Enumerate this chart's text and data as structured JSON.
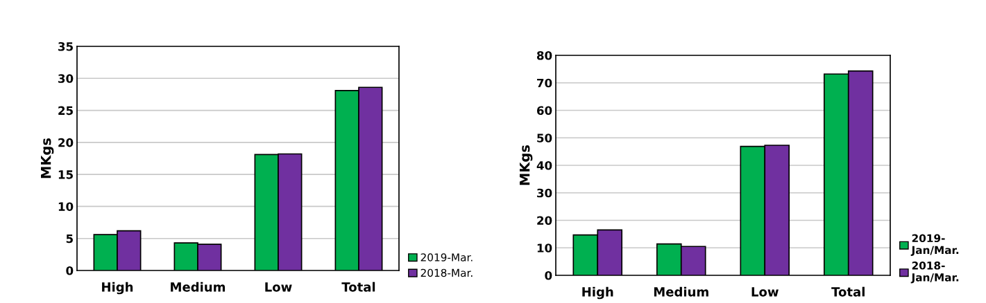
{
  "chart_data": [
    {
      "type": "bar",
      "ylabel": "MKgs",
      "categories": [
        "High",
        "Medium",
        "Low",
        "Total"
      ],
      "ylim": [
        0,
        35
      ],
      "yticks": [
        0,
        5,
        10,
        15,
        20,
        25,
        30,
        35
      ],
      "grid": "y",
      "legend": "right",
      "series": [
        {
          "name": "2019-Mar.",
          "color": "#00b050",
          "values": [
            5.6,
            4.3,
            18.1,
            28.1
          ]
        },
        {
          "name": "2018-Mar.",
          "color": "#7030a0",
          "values": [
            6.2,
            4.1,
            18.2,
            28.6
          ]
        }
      ]
    },
    {
      "type": "bar",
      "ylabel": "MKgs",
      "categories": [
        "High",
        "Medium",
        "Low",
        "Total"
      ],
      "ylim": [
        0,
        80
      ],
      "yticks": [
        0,
        10,
        20,
        30,
        40,
        50,
        60,
        70,
        80
      ],
      "grid": "y",
      "legend": "right",
      "series": [
        {
          "name": "2019-\nJan/Mar.",
          "color": "#00b050",
          "values": [
            14.7,
            11.4,
            46.9,
            73.2
          ]
        },
        {
          "name": "2018-\nJan/Mar.",
          "color": "#7030a0",
          "values": [
            16.5,
            10.5,
            47.3,
            74.3
          ]
        }
      ]
    }
  ]
}
